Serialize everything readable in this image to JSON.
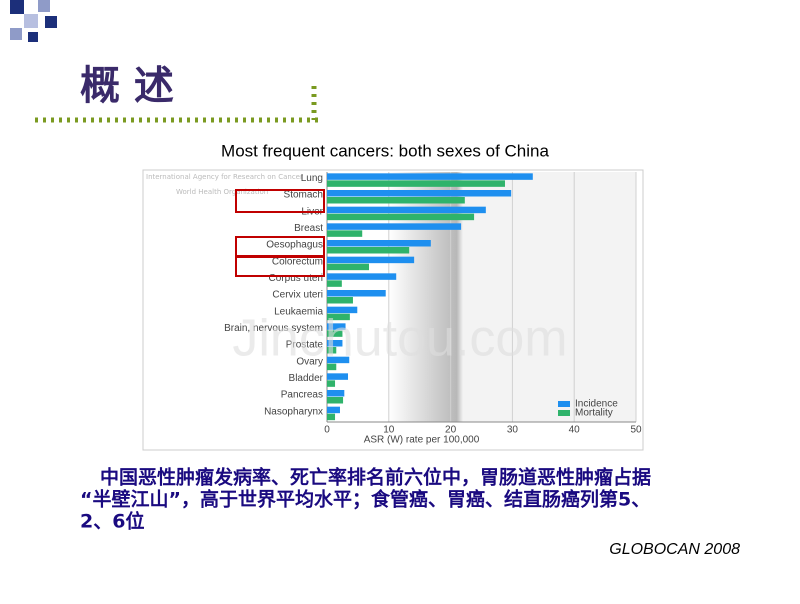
{
  "slide_title": "概 述",
  "chart_data": {
    "type": "bar",
    "orientation": "horizontal",
    "title": "Most frequent cancers: both sexes of China",
    "logo_texts": [
      "International Agency for Research on Cancer",
      "World Health Organization"
    ],
    "categories": [
      "Lung",
      "Stomach",
      "Liver",
      "Breast",
      "Oesophagus",
      "Colorectum",
      "Corpus uteri",
      "Cervix uteri",
      "Leukaemia",
      "Brain, nervous system",
      "Prostate",
      "Ovary",
      "Bladder",
      "Pancreas",
      "Nasopharynx"
    ],
    "series": [
      {
        "name": "Incidence",
        "color": "#1e8fef",
        "values": [
          33.3,
          29.8,
          25.7,
          21.7,
          16.8,
          14.1,
          11.2,
          9.5,
          4.9,
          3.0,
          2.5,
          3.6,
          3.4,
          2.8,
          2.1
        ]
      },
      {
        "name": "Mortality",
        "color": "#2fb36b",
        "values": [
          28.8,
          22.3,
          23.8,
          5.7,
          13.3,
          6.8,
          2.4,
          4.2,
          3.7,
          2.5,
          1.5,
          1.5,
          1.3,
          2.6,
          1.3
        ]
      }
    ],
    "xlim": [
      0,
      50
    ],
    "xticks": [
      0,
      10,
      20,
      30,
      40,
      50
    ],
    "grid": true,
    "xlabel": "ASR (W) rate per 100,000",
    "legend": "lower right"
  },
  "body_text": [
    "中国恶性肿瘤发病率、死亡率排名前六位中，胃肠道恶性肿瘤占据",
    "“半壁江山”，高于世界平均水平；食管癌、胃癌、结直肠癌列第5、",
    "2、6位"
  ],
  "source": "GLOBOCAN 2008",
  "watermark": "Jinchutou.com"
}
